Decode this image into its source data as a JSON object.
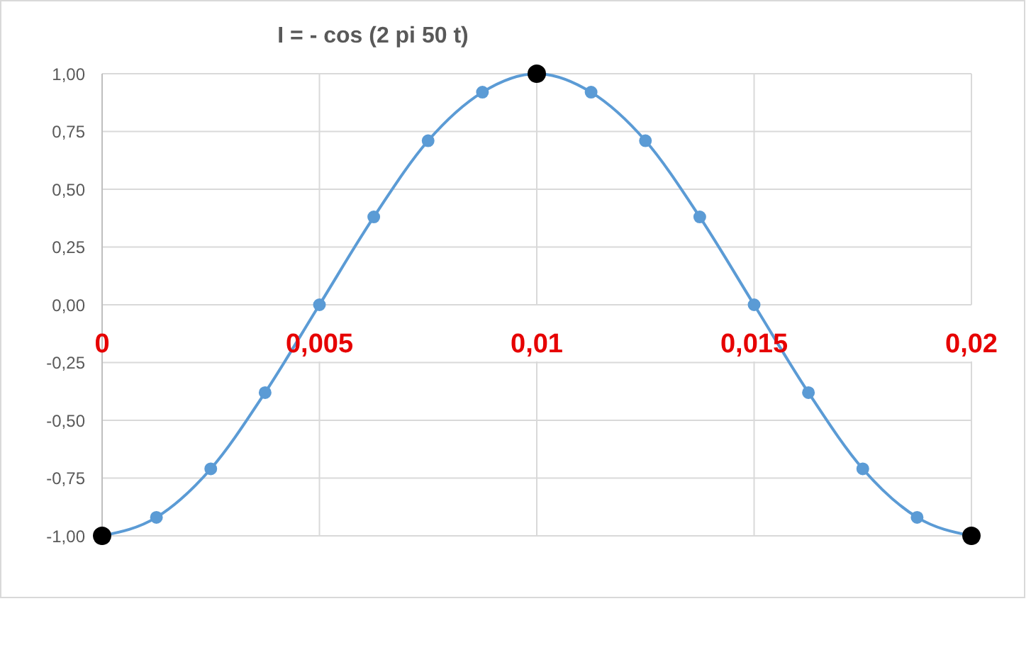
{
  "chart_data": {
    "type": "line",
    "title": "I = - cos (2 pi 50 t)",
    "series": [
      {
        "color": "#5b9bd5",
        "x": [
          0,
          0.00125,
          0.0025,
          0.00375,
          0.005,
          0.00625,
          0.0075,
          0.00875,
          0.01,
          0.01125,
          0.0125,
          0.01375,
          0.015,
          0.01625,
          0.0175,
          0.01875,
          0.02
        ],
        "values": [
          -1,
          -0.92,
          -0.71,
          -0.38,
          0,
          0.38,
          0.71,
          0.92,
          1,
          0.92,
          0.71,
          0.38,
          0,
          -0.38,
          -0.71,
          -0.92,
          -1
        ]
      },
      {
        "type": "scatter",
        "color": "#000000",
        "x": [
          0,
          0.01,
          0.02
        ],
        "values": [
          -1,
          1,
          -1
        ]
      }
    ],
    "xlim": [
      0,
      0.02
    ],
    "ylim": [
      -1,
      1
    ],
    "xticks": [
      0,
      {
        "value": 0.005,
        "label": "0,005"
      },
      {
        "value": 0.01,
        "label": "0,01"
      },
      {
        "value": 0.015,
        "label": "0,015"
      },
      {
        "value": 0.02,
        "label": "0,02"
      }
    ],
    "yticks": [
      {
        "value": -1,
        "label": "-1,00"
      },
      {
        "value": -0.75,
        "label": "-0,75"
      },
      {
        "value": -0.5,
        "label": "-0,50"
      },
      {
        "value": -0.25,
        "label": "-0,25"
      },
      {
        "value": 0,
        "label": "0,00"
      },
      {
        "value": 0.25,
        "label": "0,25"
      },
      {
        "value": 0.5,
        "label": "0,50"
      },
      {
        "value": 0.75,
        "label": "0,75"
      },
      {
        "value": 1,
        "label": "1,00"
      }
    ],
    "grid": true,
    "marker": "circle"
  }
}
